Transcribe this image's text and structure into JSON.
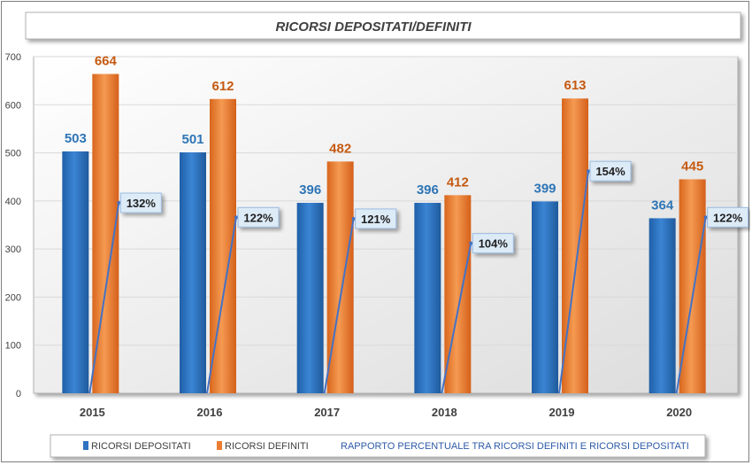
{
  "chart_data": {
    "type": "bar",
    "title": "RICORSI DEPOSITATI/DEFINITI",
    "categories": [
      "2015",
      "2016",
      "2017",
      "2018",
      "2019",
      "2020"
    ],
    "ylim": [
      0,
      700
    ],
    "yticks": [
      "0",
      "100",
      "200",
      "300",
      "400",
      "500",
      "600",
      "700"
    ],
    "grid": true,
    "legend_position": "bottom",
    "series": [
      {
        "name": "RICORSI DEPOSITATI",
        "type": "bar",
        "color": "#2E74C0",
        "label_color": "#2E75B6",
        "values": [
          503,
          501,
          396,
          396,
          399,
          364
        ]
      },
      {
        "name": "RICORSI DEFINITI",
        "type": "bar",
        "color": "#ED7D31",
        "label_color": "#C55A11",
        "values": [
          664,
          612,
          482,
          412,
          613,
          445
        ]
      },
      {
        "name": "RAPPORTO PERCENTUALE TRA RICORSI DEFINITI E RICORSI DEPOSITATI",
        "type": "line",
        "color": "#4472C4",
        "values": [
          132,
          122,
          121,
          104,
          154,
          122
        ],
        "labels": [
          "132%",
          "122%",
          "121%",
          "104%",
          "154%",
          "122%"
        ]
      }
    ]
  }
}
